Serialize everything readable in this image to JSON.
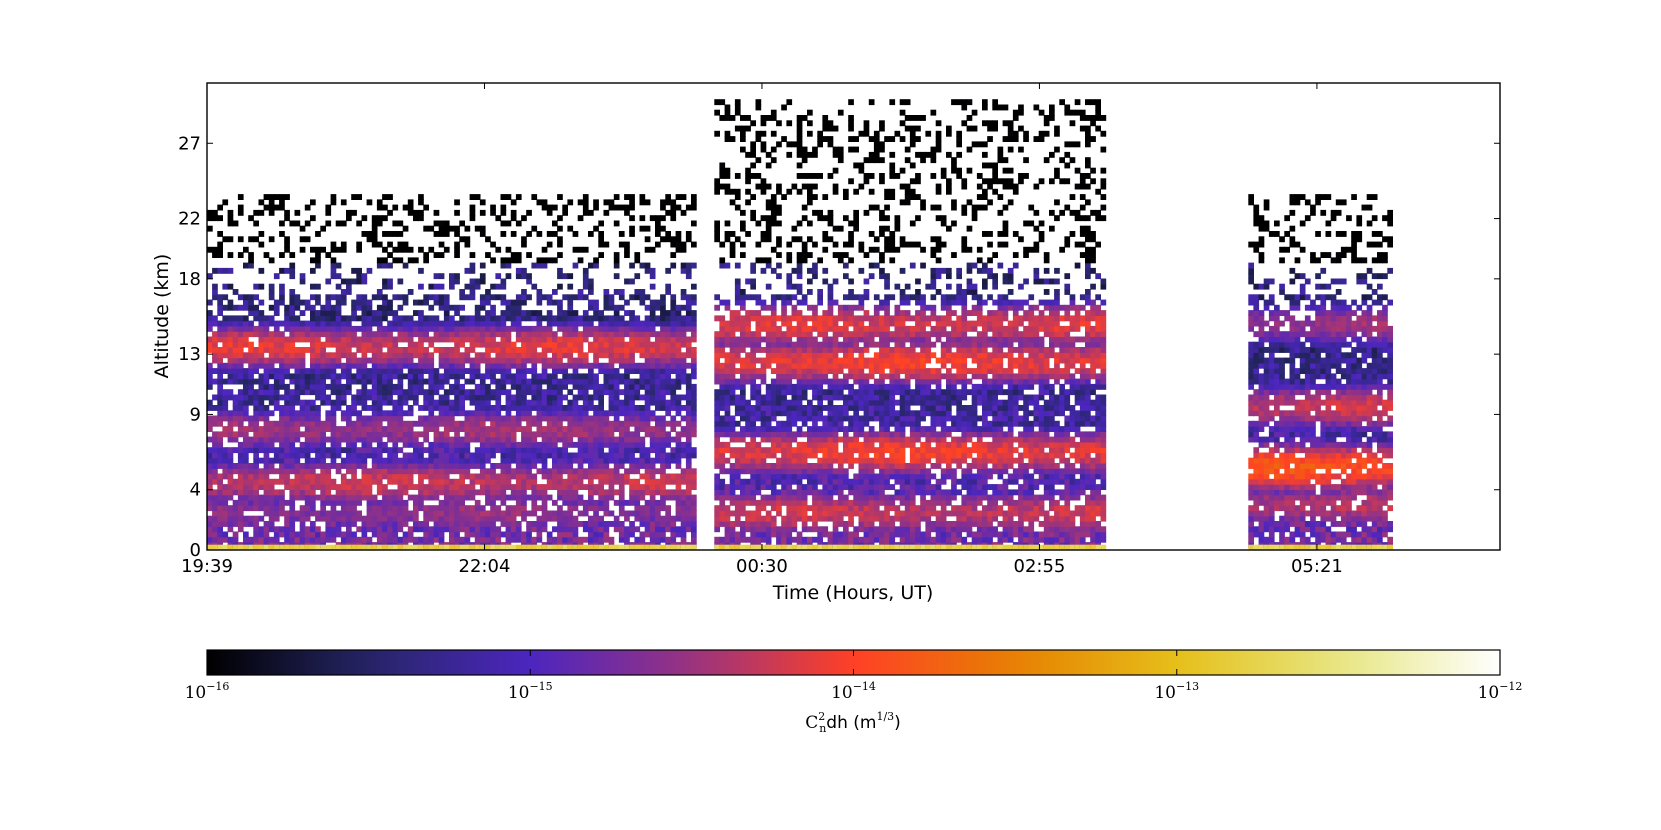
{
  "chart_data": {
    "type": "heatmap",
    "xlabel": "Time (Hours, UT)",
    "ylabel": "Altitude (km)",
    "x_tick_labels": [
      "19:39",
      "22:04",
      "00:30",
      "02:55",
      "05:21"
    ],
    "y_ticks": [
      0,
      4,
      9,
      13,
      18,
      22,
      27
    ],
    "y_range_km": [
      0,
      31
    ],
    "x_range_hours_from_19_39": [
      0,
      11.3
    ],
    "gaps": [
      {
        "from": "23:55",
        "to": "00:05"
      },
      {
        "from": "03:30",
        "to": "04:45"
      }
    ],
    "segments": [
      {
        "start": "19:39",
        "end": "23:55",
        "top_km": 23.5
      },
      {
        "start": "00:05",
        "end": "03:30",
        "top_km": 30.0
      },
      {
        "start": "04:45",
        "end": "05:59",
        "top_km": 23.5
      }
    ],
    "layers": [
      {
        "segment": 0,
        "alt_km": 13.5,
        "log10": -14.2
      },
      {
        "segment": 0,
        "alt_km": 4.5,
        "log10": -14.3
      },
      {
        "segment": 0,
        "alt_km": 8.0,
        "log10": -14.5
      },
      {
        "segment": 0,
        "alt_km": 2.5,
        "log10": -14.6
      },
      {
        "segment": 1,
        "alt_km": 12.5,
        "log10": -14.1
      },
      {
        "segment": 1,
        "alt_km": 15.0,
        "log10": -14.2
      },
      {
        "segment": 1,
        "alt_km": 6.5,
        "log10": -14.1
      },
      {
        "segment": 1,
        "alt_km": 2.5,
        "log10": -14.3
      },
      {
        "segment": 2,
        "alt_km": 5.5,
        "log10": -13.9
      },
      {
        "segment": 2,
        "alt_km": 9.5,
        "log10": -14.3
      },
      {
        "segment": 2,
        "alt_km": 3.0,
        "log10": -14.4
      },
      {
        "segment": 2,
        "alt_km": 15.0,
        "log10": -14.5
      }
    ],
    "colorbar": {
      "label_base": "C",
      "label_sup": "2",
      "label_sub": "n",
      "label_rest": "dh (m",
      "label_unit_sup": "1/3",
      "label_close": ")",
      "ticks": [
        {
          "base": "10",
          "exp": "−16"
        },
        {
          "base": "10",
          "exp": "−15"
        },
        {
          "base": "10",
          "exp": "−14"
        },
        {
          "base": "10",
          "exp": "−13"
        },
        {
          "base": "10",
          "exp": "−12"
        }
      ],
      "range_log10": [
        -16,
        -12
      ],
      "colormap": "CMRmap"
    },
    "grid": false
  }
}
